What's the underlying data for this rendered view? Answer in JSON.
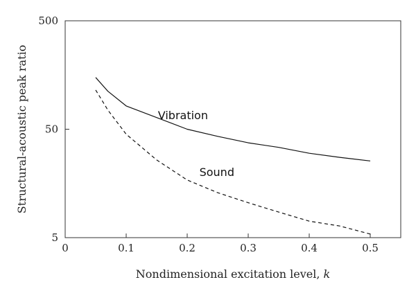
{
  "chart_data": {
    "type": "line",
    "title": "",
    "xlabel": "Nondimensional excitation level, ",
    "xlabel_var": "k",
    "ylabel": "Structural-acoustic peak ratio",
    "xlim": [
      0,
      0.55
    ],
    "ylim": [
      5,
      500
    ],
    "yscale": "log",
    "grid": false,
    "x_ticks": [
      0,
      0.1,
      0.2,
      0.3,
      0.4,
      0.5
    ],
    "x_tick_labels": [
      "0",
      "0.1",
      "0.2",
      "0.3",
      "0.4",
      "0.5"
    ],
    "y_ticks": [
      5,
      50,
      500
    ],
    "y_tick_labels": [
      "5",
      "50",
      "500"
    ],
    "series": [
      {
        "name": "Vibration",
        "style": "solid",
        "label_at": {
          "x": 0.152,
          "y": 62
        },
        "points": [
          {
            "x": 0.05,
            "y": 150
          },
          {
            "x": 0.07,
            "y": 112
          },
          {
            "x": 0.1,
            "y": 82
          },
          {
            "x": 0.15,
            "y": 64
          },
          {
            "x": 0.2,
            "y": 50
          },
          {
            "x": 0.25,
            "y": 43
          },
          {
            "x": 0.3,
            "y": 37.5
          },
          {
            "x": 0.35,
            "y": 34
          },
          {
            "x": 0.4,
            "y": 30
          },
          {
            "x": 0.45,
            "y": 27.5
          },
          {
            "x": 0.5,
            "y": 25.5
          }
        ]
      },
      {
        "name": "Sound",
        "style": "dashed",
        "label_at": {
          "x": 0.22,
          "y": 18.5
        },
        "points": [
          {
            "x": 0.05,
            "y": 115
          },
          {
            "x": 0.07,
            "y": 75
          },
          {
            "x": 0.1,
            "y": 45
          },
          {
            "x": 0.15,
            "y": 26
          },
          {
            "x": 0.2,
            "y": 17
          },
          {
            "x": 0.25,
            "y": 13
          },
          {
            "x": 0.3,
            "y": 10.5
          },
          {
            "x": 0.35,
            "y": 8.6
          },
          {
            "x": 0.4,
            "y": 7.1
          },
          {
            "x": 0.45,
            "y": 6.4
          },
          {
            "x": 0.5,
            "y": 5.4
          }
        ]
      }
    ]
  }
}
